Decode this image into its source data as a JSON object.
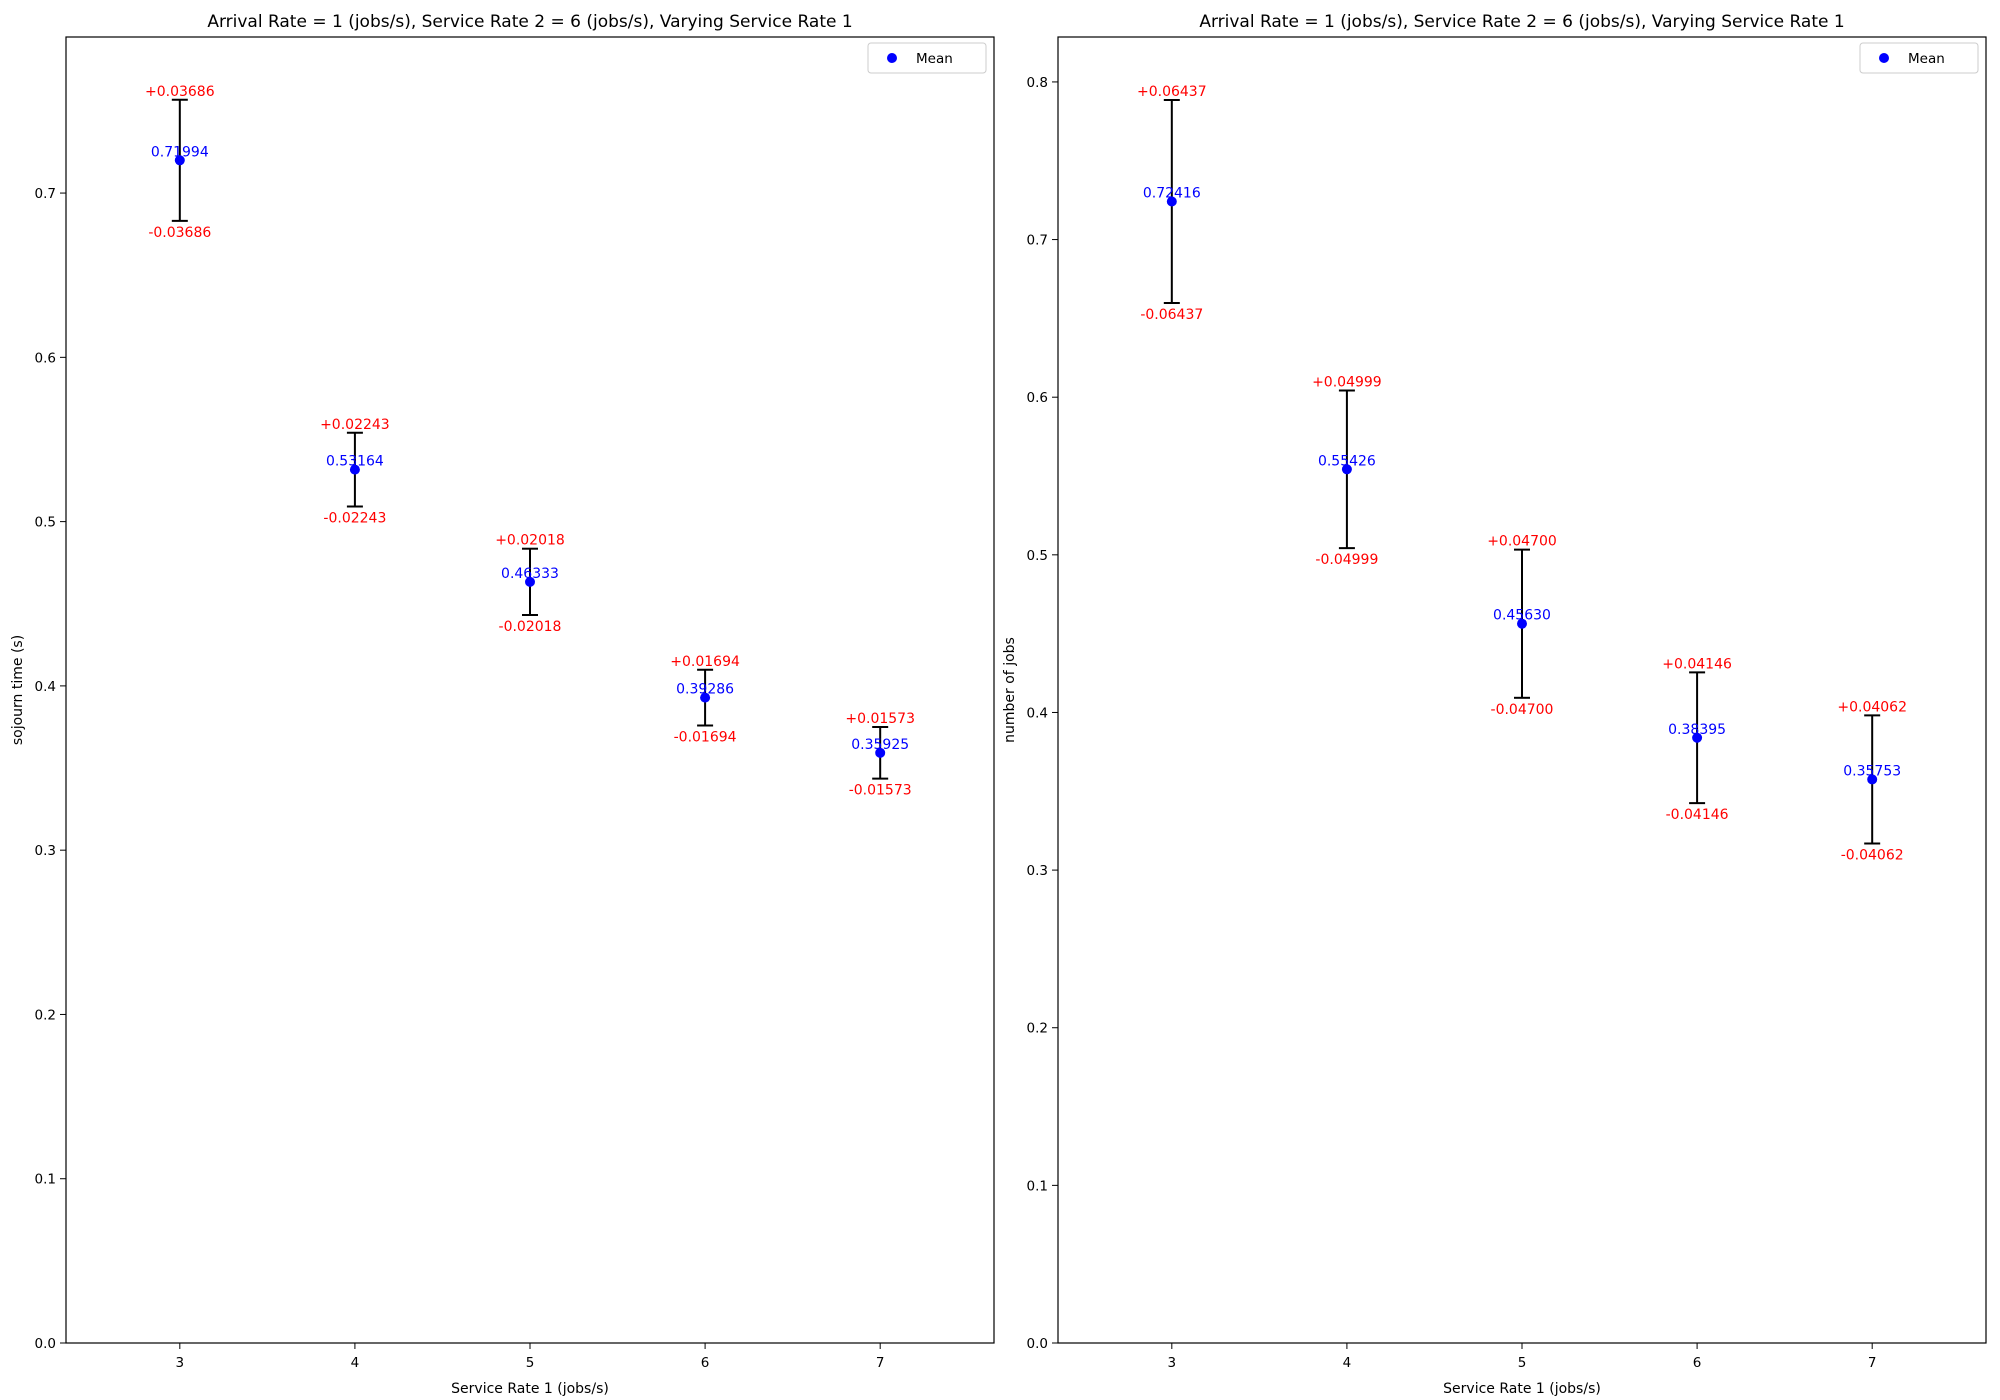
{
  "chart_data": [
    {
      "type": "scatter",
      "title": "Arrival Rate = 1 (jobs/s), Service Rate 2 = 6 (jobs/s), Varying Service Rate 1",
      "xlabel": "Service Rate 1 (jobs/s)",
      "ylabel": "sojourn time (s)",
      "xlim": [
        2.35,
        7.65
      ],
      "ylim": [
        0,
        0.795
      ],
      "x_ticks": [
        "3",
        "4",
        "5",
        "6",
        "7"
      ],
      "y_ticks": [
        "0.0",
        "0.1",
        "0.2",
        "0.3",
        "0.4",
        "0.5",
        "0.6",
        "0.7"
      ],
      "y_tick_values": [
        0,
        0.1,
        0.2,
        0.3,
        0.4,
        0.5,
        0.6,
        0.7
      ],
      "legend": {
        "label": "Mean",
        "placement": "top-right"
      },
      "series": [
        {
          "name": "Mean",
          "x": [
            3,
            4,
            5,
            6,
            7
          ],
          "y": [
            0.71994,
            0.53164,
            0.46333,
            0.39286,
            0.35925
          ],
          "mean_labels": [
            "0.71994",
            "0.53164",
            "0.46333",
            "0.39286",
            "0.35925"
          ],
          "err": [
            0.03686,
            0.02243,
            0.02018,
            0.01694,
            0.01573
          ],
          "err_plus_labels": [
            "+0.03686",
            "+0.02243",
            "+0.02018",
            "+0.01694",
            "+0.01573"
          ],
          "err_minus_labels": [
            "-0.03686",
            "-0.02243",
            "-0.02018",
            "-0.01694",
            "-0.01573"
          ]
        }
      ],
      "colors": {
        "mean": "#0000ff",
        "error_label": "#ff0000",
        "error_bar": "#000000"
      }
    },
    {
      "type": "scatter",
      "title": "Arrival Rate = 1 (jobs/s), Service Rate 2 = 6 (jobs/s), Varying Service Rate 1",
      "xlabel": "Service Rate 1 (jobs/s)",
      "ylabel": "number of jobs",
      "xlim": [
        2.35,
        7.65
      ],
      "ylim": [
        0,
        0.8285
      ],
      "x_ticks": [
        "3",
        "4",
        "5",
        "6",
        "7"
      ],
      "y_ticks": [
        "0.0",
        "0.1",
        "0.2",
        "0.3",
        "0.4",
        "0.5",
        "0.6",
        "0.7",
        "0.8"
      ],
      "y_tick_values": [
        0,
        0.1,
        0.2,
        0.3,
        0.4,
        0.5,
        0.6,
        0.7,
        0.8
      ],
      "legend": {
        "label": "Mean",
        "placement": "top-right"
      },
      "series": [
        {
          "name": "Mean",
          "x": [
            3,
            4,
            5,
            6,
            7
          ],
          "y": [
            0.72416,
            0.55426,
            0.4563,
            0.38395,
            0.35753
          ],
          "mean_labels": [
            "0.72416",
            "0.55426",
            "0.45630",
            "0.38395",
            "0.35753"
          ],
          "err": [
            0.06437,
            0.04999,
            0.047,
            0.04146,
            0.04062
          ],
          "err_plus_labels": [
            "+0.06437",
            "+0.04999",
            "+0.04700",
            "+0.04146",
            "+0.04062"
          ],
          "err_minus_labels": [
            "-0.06437",
            "-0.04999",
            "-0.04700",
            "-0.04146",
            "-0.04062"
          ]
        }
      ],
      "colors": {
        "mean": "#0000ff",
        "error_label": "#ff0000",
        "error_bar": "#000000"
      }
    }
  ]
}
